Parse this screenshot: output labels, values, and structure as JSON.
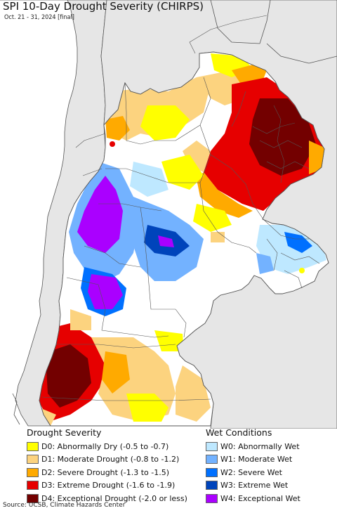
{
  "title": "SPI 10-Day Drought Severity (CHIRPS)",
  "subtitle": "Oct. 21 - 31, 2024 [final]",
  "colors": {
    "background": "#ffffff",
    "ocean": "#ffffff",
    "outside_land": "#e6e6e6",
    "border": "#555555"
  },
  "legend_drought": {
    "title": "Drought Severity",
    "items": [
      {
        "label": "D0: Abnormally Dry (-0.5 to -0.7)",
        "color": "#ffff00"
      },
      {
        "label": "D1: Moderate Drought (-0.8 to -1.2)",
        "color": "#fcd37f"
      },
      {
        "label": "D2: Severe Drought (-1.3 to -1.5)",
        "color": "#ffaa00"
      },
      {
        "label": "D3: Extreme Drought (-1.6 to -1.9)",
        "color": "#e60000"
      },
      {
        "label": "D4: Exceptional Drought (-2.0 or less)",
        "color": "#730000"
      }
    ]
  },
  "legend_wet": {
    "title": "Wet Conditions",
    "items": [
      {
        "label": "W0: Abnormally Wet",
        "color": "#bee8ff"
      },
      {
        "label": "W1: Moderate Wet",
        "color": "#73b2ff"
      },
      {
        "label": "W2: Severe Wet",
        "color": "#0070ff"
      },
      {
        "label": "W3: Extreme Wet",
        "color": "#0044bb"
      },
      {
        "label": "W4: Exceptional Wet",
        "color": "#aa00ff"
      }
    ]
  },
  "source": "Source: UCSB, Climate Hazards Center"
}
